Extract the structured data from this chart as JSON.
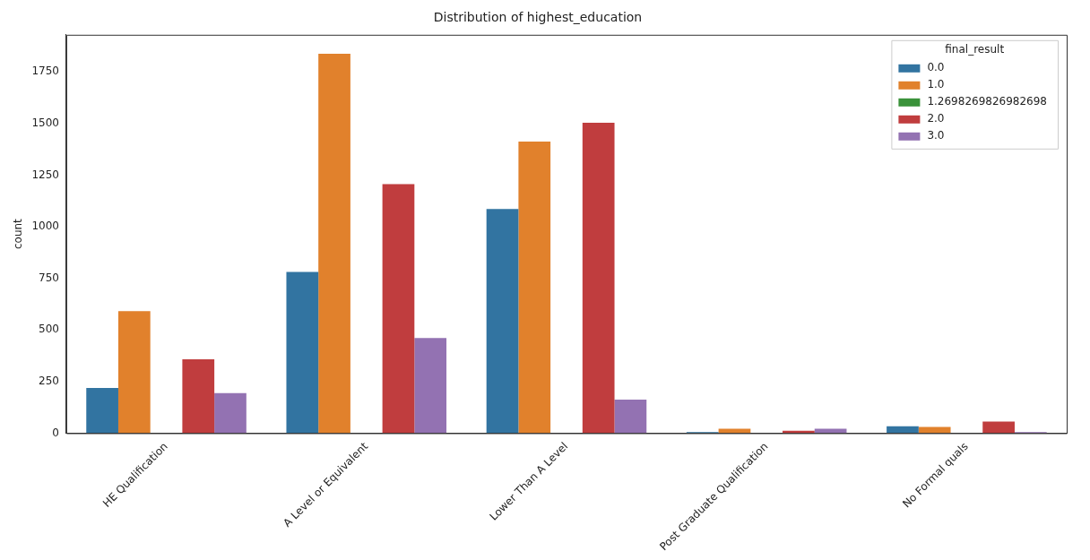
{
  "chart_data": {
    "type": "bar",
    "title": "Distribution of highest_education",
    "ylabel": "count",
    "legend_title": "final_result",
    "categories": [
      "HE Qualification",
      "A Level or Equivalent",
      "Lower Than A Level",
      "Post Graduate Qualification",
      "No Formal quals"
    ],
    "series": [
      {
        "name": "0.0",
        "color": "#3274a1",
        "values": [
          219,
          781,
          1086,
          5,
          34
        ]
      },
      {
        "name": "1.0",
        "color": "#e1812c",
        "values": [
          591,
          1838,
          1413,
          21,
          30
        ]
      },
      {
        "name": "1.2698269826982698",
        "color": "#3a923a",
        "values": [
          0,
          0,
          0,
          0,
          0
        ]
      },
      {
        "name": "2.0",
        "color": "#c03d3e",
        "values": [
          358,
          1206,
          1504,
          12,
          56
        ]
      },
      {
        "name": "3.0",
        "color": "#9372b2",
        "values": [
          194,
          461,
          163,
          21,
          5
        ]
      }
    ],
    "ylim": [
      0,
      1930
    ],
    "yticks": [
      0,
      250,
      500,
      750,
      1000,
      1250,
      1500,
      1750
    ],
    "grid": false,
    "legend": "top right"
  }
}
